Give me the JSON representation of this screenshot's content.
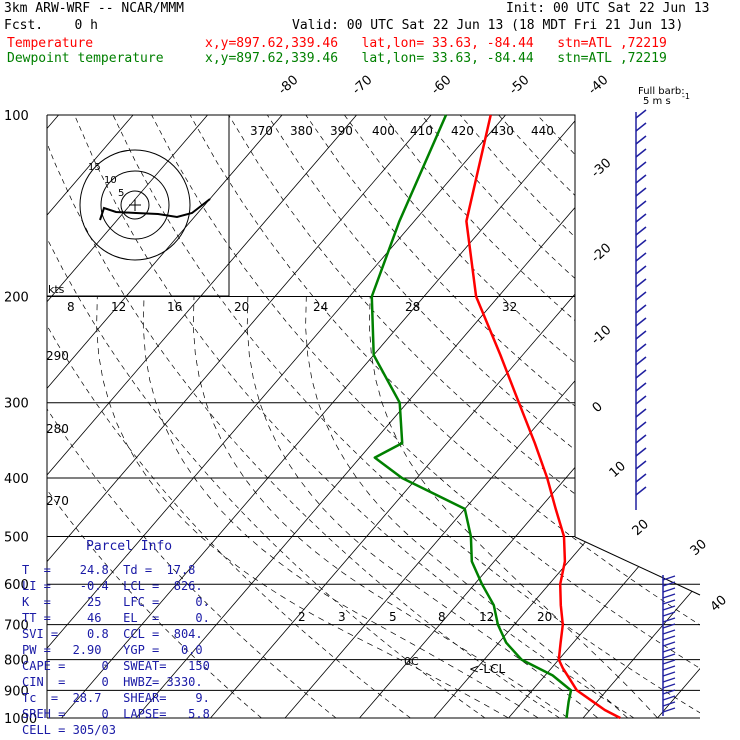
{
  "header": {
    "model": "3km ARW-WRF -- NCAR/MMM",
    "init": "Init: 00 UTC Sat 22 Jun 13",
    "fcst": "Fcst.    0 h",
    "valid": "Valid: 00 UTC Sat 22 Jun 13 (18 MDT Fri 21 Jun 13)",
    "t_label": "Temperature",
    "t_loc": "x,y=897.62,339.46   lat,lon= 33.63, -84.44   stn=ATL ,72219",
    "td_label": "Dewpoint temperature",
    "td_loc": "x,y=897.62,339.46   lat,lon= 33.63, -84.44   stn=ATL ,72219"
  },
  "barb_legend": {
    "title": "Full barb:",
    "units": "5 m s",
    "sup": "-1"
  },
  "hodograph": {
    "units_label": "kts",
    "rings": [
      "5",
      "10",
      "15"
    ]
  },
  "parcel": {
    "title": "Parcel Info",
    "rows": [
      "T  =    24.8  Td =  17.8",
      "LI =    -0.4  LCL =  826.",
      "K  =     25   LFC =     0.",
      "TT =     46   EL  =     0.",
      "SVI =    0.8  CCL =  804.",
      "PW =   2.90   YGP =   0.0",
      "CAPE =     0  SWEAT=   150",
      "CIN  =     0  HWBZ= 3330.",
      "Tc  =  28.7   SHEAR=    9.",
      "SREH =     0  LAPSE=   5.8",
      "CELL = 305/03"
    ]
  },
  "chart_data": {
    "type": "line",
    "subtype": "skew-T log-P",
    "y_axis": {
      "scale": "log",
      "ylim": [
        1000,
        100
      ],
      "ticks": [
        100,
        200,
        300,
        400,
        500,
        600,
        700,
        800,
        900,
        1000
      ]
    },
    "isotherm_labels": [
      "-80",
      "-70",
      "-60",
      "-50",
      "-40",
      "-30",
      "-20",
      "-10",
      "0",
      "10",
      "20",
      "30",
      "40"
    ],
    "theta_labels": [
      "370",
      "380",
      "390",
      "400",
      "410",
      "420",
      "430",
      "440"
    ],
    "theta_low_labels": [
      "290",
      "280",
      "270"
    ],
    "mixing_ratio_upper_labels": [
      "8",
      "12",
      "16",
      "20",
      "24",
      "28",
      "32"
    ],
    "mixing_ratio_lower_labels": [
      "2",
      "3",
      "5",
      "8",
      "12",
      "20"
    ],
    "annotations": {
      "lcl": "<-LCL",
      "freezing": "0C"
    },
    "series": [
      {
        "name": "Temperature",
        "color": "#ff0000",
        "points": [
          [
            1000,
            25
          ],
          [
            970,
            22
          ],
          [
            940,
            19.5
          ],
          [
            900,
            16
          ],
          [
            850,
            13
          ],
          [
            826,
            11.5
          ],
          [
            800,
            10
          ],
          [
            750,
            8.3
          ],
          [
            700,
            6.5
          ],
          [
            650,
            4
          ],
          [
            600,
            1.5
          ],
          [
            550,
            -0.5
          ],
          [
            500,
            -3.5
          ],
          [
            450,
            -7.8
          ],
          [
            400,
            -12.5
          ],
          [
            350,
            -18.2
          ],
          [
            300,
            -25
          ],
          [
            250,
            -33
          ],
          [
            200,
            -43
          ],
          [
            150,
            -53
          ],
          [
            100,
            -62
          ]
        ]
      },
      {
        "name": "Dewpoint temperature",
        "color": "#008000",
        "points": [
          [
            1000,
            17.8
          ],
          [
            970,
            17
          ],
          [
            940,
            16.2
          ],
          [
            900,
            15.2
          ],
          [
            850,
            11
          ],
          [
            800,
            5
          ],
          [
            750,
            1
          ],
          [
            700,
            -2.2
          ],
          [
            650,
            -5
          ],
          [
            600,
            -9
          ],
          [
            550,
            -13
          ],
          [
            500,
            -16
          ],
          [
            450,
            -20
          ],
          [
            400,
            -32
          ],
          [
            370,
            -38
          ],
          [
            350,
            -36
          ],
          [
            300,
            -41
          ],
          [
            250,
            -50
          ],
          [
            200,
            -57
          ],
          [
            150,
            -62
          ],
          [
            100,
            -68
          ]
        ]
      }
    ]
  }
}
